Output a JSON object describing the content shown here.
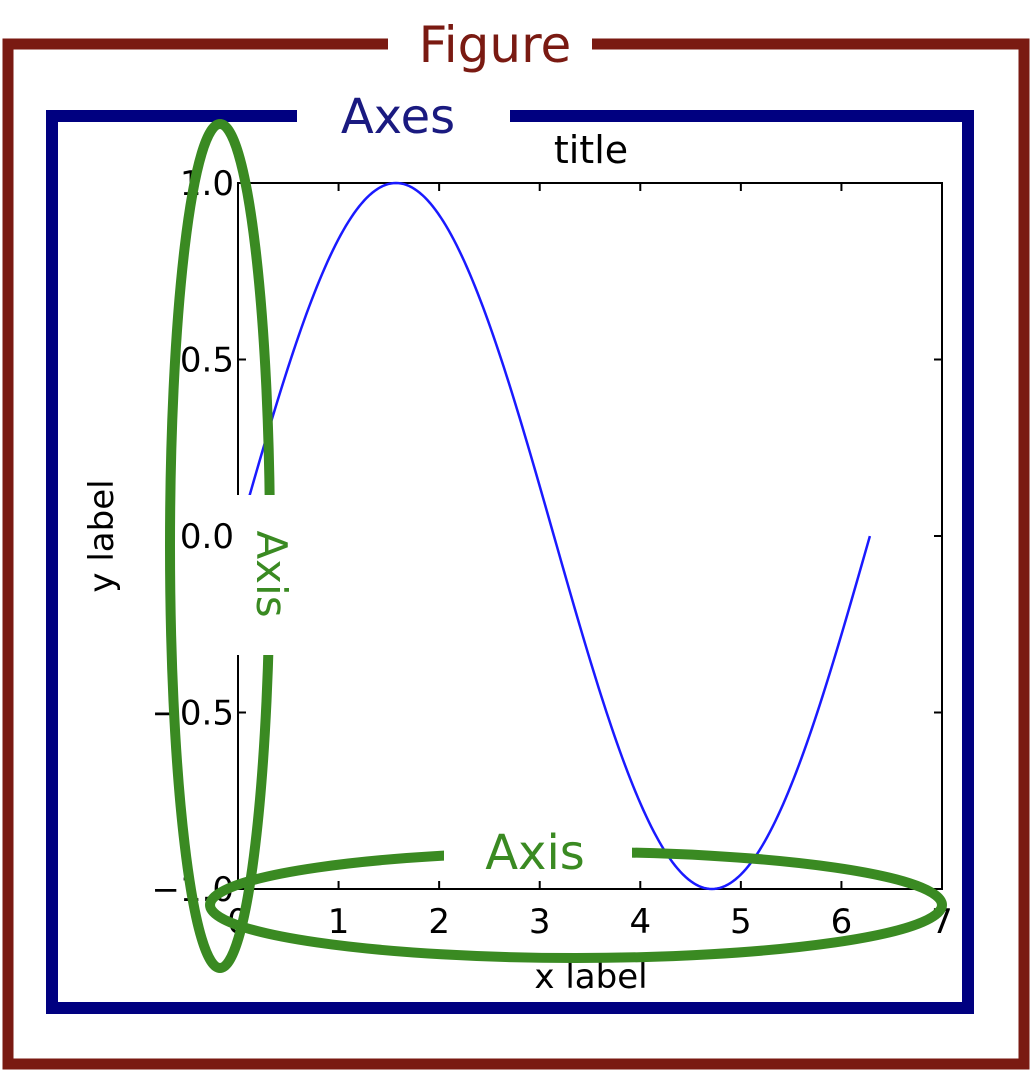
{
  "annotations": {
    "figure": {
      "label": "Figure",
      "color": "#7a1a12"
    },
    "axes": {
      "label": "Axes",
      "color": "#000080"
    },
    "yaxis": {
      "label": "Axis",
      "color": "#3a8a22"
    },
    "xaxis": {
      "label": "Axis",
      "color": "#3a8a22"
    }
  },
  "chart_data": {
    "type": "line",
    "title": "title",
    "xlabel": "x label",
    "ylabel": "y label",
    "xlim": [
      0,
      7
    ],
    "ylim": [
      -1.0,
      1.0
    ],
    "xticks": [
      "0",
      "1",
      "2",
      "3",
      "4",
      "5",
      "6",
      "7"
    ],
    "yticks": [
      "−1.0",
      "−0.5",
      "0.0",
      "0.5",
      "1.0"
    ],
    "series": [
      {
        "function": "sin(x)",
        "x_range": [
          0,
          6.283
        ],
        "color": "#1a1aff"
      }
    ]
  }
}
